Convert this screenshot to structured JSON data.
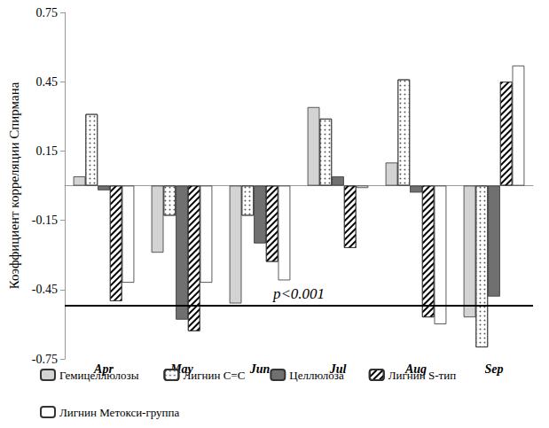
{
  "chart_data": {
    "type": "bar",
    "y_label": "Коэффициент корреляции Спирмана",
    "categories": [
      "Apr",
      "May",
      "Jun",
      "Jul",
      "Aug",
      "Sep"
    ],
    "series": [
      {
        "name": "Гемицеллюлозы",
        "color": "#d3d3d3",
        "values": [
          0.04,
          -0.29,
          -0.51,
          0.34,
          0.1,
          -0.57
        ]
      },
      {
        "name": "Лигнин C=C",
        "color": "#ffffff",
        "values": [
          0.31,
          -0.13,
          -0.13,
          0.29,
          0.46,
          -0.7
        ]
      },
      {
        "name": "Целлюлоза",
        "color": "#707070",
        "values": [
          -0.02,
          -0.58,
          -0.25,
          0.04,
          -0.03,
          -0.48
        ]
      },
      {
        "name": "Лигнин S-тип",
        "color": "#ffffff",
        "values": [
          -0.5,
          -0.63,
          -0.33,
          -0.27,
          -0.57,
          0.45
        ]
      },
      {
        "name": "Лигнин Метокси-группа",
        "color": "#ffffff",
        "values": [
          -0.42,
          -0.42,
          -0.41,
          -0.01,
          -0.6,
          0.52
        ]
      }
    ],
    "annotations": [
      {
        "text": "p<0.001",
        "y": -0.52
      }
    ],
    "ylim": [
      -0.75,
      0.75
    ],
    "yticks": [
      -0.75,
      -0.45,
      -0.15,
      0.15,
      0.45,
      0.75
    ],
    "grid": false,
    "legend": "bottom"
  }
}
